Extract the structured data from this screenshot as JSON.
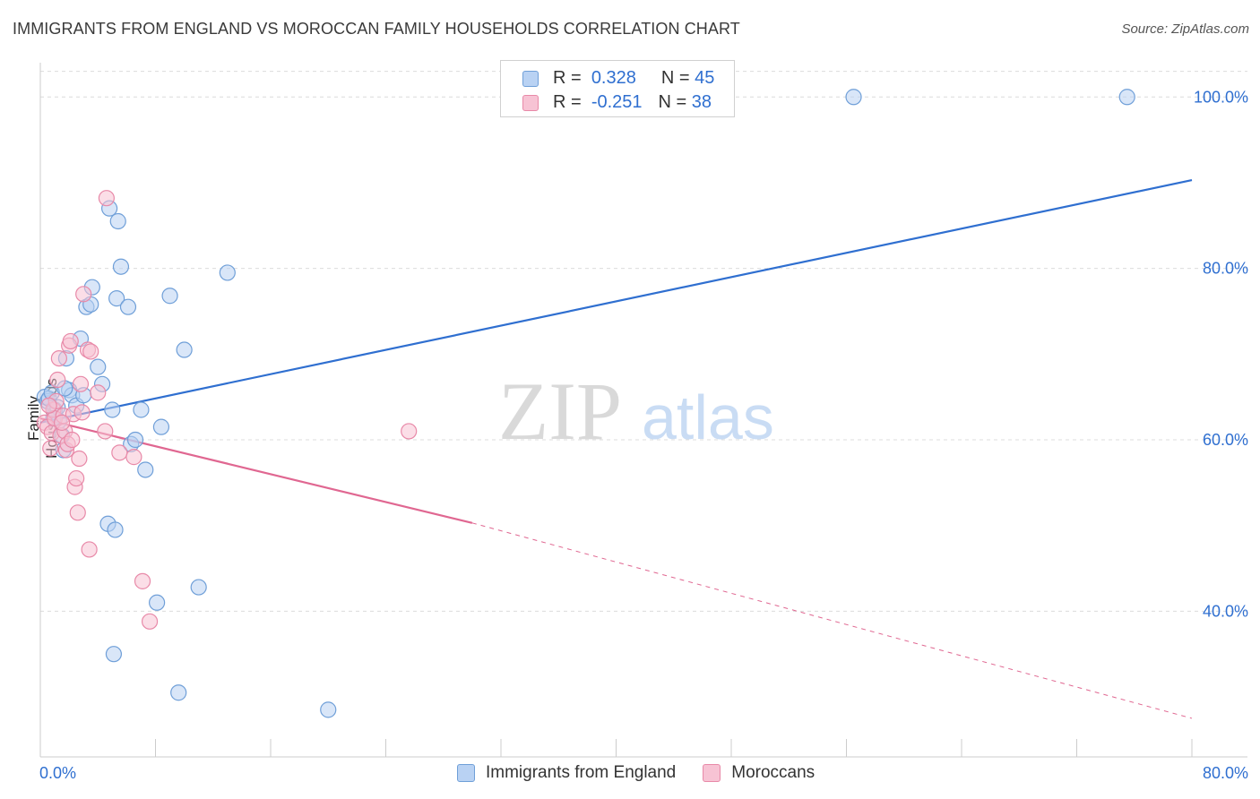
{
  "title": "IMMIGRANTS FROM ENGLAND VS MOROCCAN FAMILY HOUSEHOLDS CORRELATION CHART",
  "source": "Source: ZipAtlas.com",
  "watermark": {
    "zip": "ZIP",
    "atlas": "atlas"
  },
  "legend_top": {
    "rows": [
      {
        "r_label": "R =",
        "r_value": "0.328",
        "n_label": "N =",
        "n_value": "45"
      },
      {
        "r_label": "R =",
        "r_value": "-0.251",
        "n_label": "N =",
        "n_value": "38"
      }
    ]
  },
  "legend_bottom": [
    "Immigrants from England",
    "Moroccans"
  ],
  "colors": {
    "blue_fill": "#b9d2f3",
    "blue_stroke": "#6f9fd8",
    "blue_line": "#2f6fd0",
    "pink_fill": "#f7c3d4",
    "pink_stroke": "#e889a8",
    "pink_line": "#e06791",
    "grid": "#dcdcdc",
    "axis_text": "#2f6fd0"
  },
  "chart_data": {
    "type": "scatter",
    "title": "IMMIGRANTS FROM ENGLAND VS MOROCCAN FAMILY HOUSEHOLDS CORRELATION CHART",
    "xlabel": "",
    "ylabel": "Family Households",
    "xlim": [
      0,
      80
    ],
    "ylim": [
      23,
      104
    ],
    "x_tick_labels": [
      "0.0%",
      "80.0%"
    ],
    "y_ticks": [
      40,
      60,
      80,
      100
    ],
    "y_tick_labels": [
      "40.0%",
      "60.0%",
      "80.0%",
      "100.0%"
    ],
    "grid": true,
    "series": [
      {
        "name": "Immigrants from England",
        "color": "blue",
        "r": 0.328,
        "n": 45,
        "points": [
          [
            0.3,
            65.0
          ],
          [
            0.5,
            64.5
          ],
          [
            0.6,
            64.8
          ],
          [
            0.8,
            65.5
          ],
          [
            1.0,
            63.5
          ],
          [
            1.2,
            63.8
          ],
          [
            1.3,
            62.2
          ],
          [
            1.5,
            60.5
          ],
          [
            1.6,
            58.8
          ],
          [
            1.8,
            69.5
          ],
          [
            2.0,
            65.8
          ],
          [
            2.2,
            65.2
          ],
          [
            2.5,
            64.0
          ],
          [
            2.8,
            71.8
          ],
          [
            3.0,
            65.2
          ],
          [
            3.2,
            75.5
          ],
          [
            3.5,
            75.8
          ],
          [
            4.0,
            68.5
          ],
          [
            4.3,
            66.5
          ],
          [
            3.6,
            77.8
          ],
          [
            4.8,
            87.0
          ],
          [
            5.3,
            76.5
          ],
          [
            5.4,
            85.5
          ],
          [
            5.6,
            80.2
          ],
          [
            6.1,
            75.5
          ],
          [
            5.0,
            63.5
          ],
          [
            6.3,
            59.5
          ],
          [
            6.6,
            60.0
          ],
          [
            7.0,
            63.5
          ],
          [
            8.4,
            61.5
          ],
          [
            7.3,
            56.5
          ],
          [
            4.7,
            50.2
          ],
          [
            5.2,
            49.5
          ],
          [
            8.1,
            41.0
          ],
          [
            11.0,
            42.8
          ],
          [
            10.0,
            70.5
          ],
          [
            9.0,
            76.8
          ],
          [
            13.0,
            79.5
          ],
          [
            5.1,
            35.0
          ],
          [
            9.6,
            30.5
          ],
          [
            20.0,
            28.5
          ],
          [
            56.5,
            100.0
          ],
          [
            75.5,
            100.0
          ],
          [
            1.7,
            66.0
          ],
          [
            0.9,
            62.5
          ]
        ]
      },
      {
        "name": "Moroccans",
        "color": "pink",
        "r": -0.251,
        "n": 38,
        "points": [
          [
            0.3,
            62.0
          ],
          [
            0.5,
            61.5
          ],
          [
            0.7,
            59.0
          ],
          [
            0.8,
            60.8
          ],
          [
            0.9,
            63.5
          ],
          [
            1.0,
            62.5
          ],
          [
            1.1,
            64.5
          ],
          [
            1.2,
            67.0
          ],
          [
            1.3,
            69.5
          ],
          [
            1.4,
            60.5
          ],
          [
            1.6,
            62.8
          ],
          [
            1.7,
            61.0
          ],
          [
            1.8,
            58.8
          ],
          [
            1.9,
            59.5
          ],
          [
            2.0,
            71.0
          ],
          [
            2.1,
            71.5
          ],
          [
            2.2,
            60.0
          ],
          [
            2.3,
            63.0
          ],
          [
            2.4,
            54.5
          ],
          [
            2.5,
            55.5
          ],
          [
            2.6,
            51.5
          ],
          [
            2.7,
            57.8
          ],
          [
            2.8,
            66.5
          ],
          [
            3.0,
            77.0
          ],
          [
            3.3,
            70.5
          ],
          [
            3.5,
            70.3
          ],
          [
            4.0,
            65.5
          ],
          [
            4.5,
            61.0
          ],
          [
            4.6,
            88.2
          ],
          [
            5.5,
            58.5
          ],
          [
            6.5,
            58.0
          ],
          [
            7.1,
            43.5
          ],
          [
            7.6,
            38.8
          ],
          [
            3.4,
            47.2
          ],
          [
            25.6,
            61.0
          ],
          [
            0.6,
            64.0
          ],
          [
            2.9,
            63.2
          ],
          [
            1.5,
            62.0
          ]
        ]
      }
    ],
    "trend_lines": [
      {
        "series": "Immigrants from England",
        "from": [
          0,
          62.0
        ],
        "to": [
          80,
          90.3
        ],
        "style": "solid"
      },
      {
        "series": "Moroccans",
        "from": [
          0,
          62.5
        ],
        "to": [
          30,
          50.3
        ],
        "style": "solid"
      },
      {
        "series": "Moroccans",
        "from": [
          30,
          50.3
        ],
        "to": [
          80,
          27.5
        ],
        "style": "dashed"
      }
    ]
  }
}
